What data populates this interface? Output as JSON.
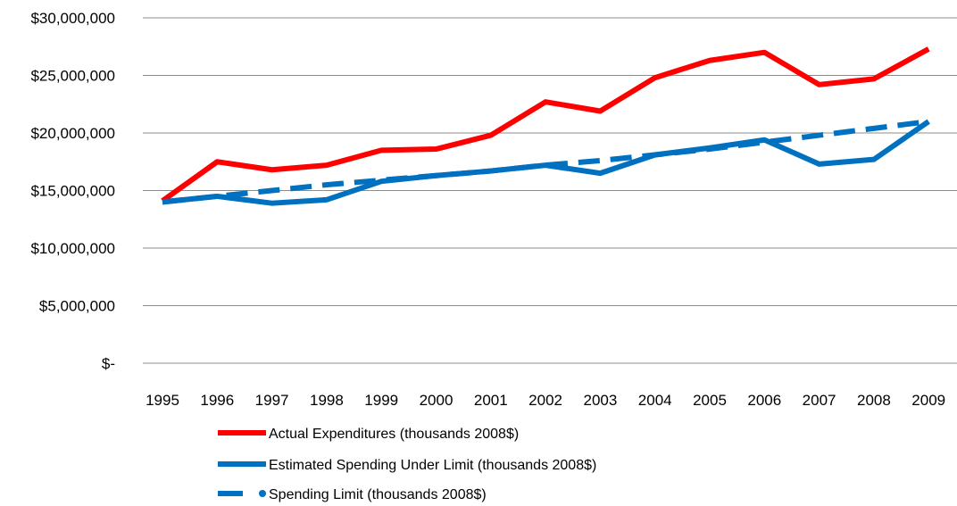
{
  "chart_data": {
    "type": "line",
    "title": "",
    "xlabel": "",
    "ylabel": "",
    "x": [
      "1995",
      "1996",
      "1997",
      "1998",
      "1999",
      "2000",
      "2001",
      "2002",
      "2003",
      "2004",
      "2005",
      "2006",
      "2007",
      "2008",
      "2009"
    ],
    "y_ticks": [
      {
        "value": 0,
        "label": "$-"
      },
      {
        "value": 5000000,
        "label": "$5,000,000"
      },
      {
        "value": 10000000,
        "label": "$10,000,000"
      },
      {
        "value": 15000000,
        "label": "$15,000,000"
      },
      {
        "value": 20000000,
        "label": "$20,000,000"
      },
      {
        "value": 25000000,
        "label": "$25,000,000"
      },
      {
        "value": 30000000,
        "label": "$30,000,000"
      }
    ],
    "ylim": [
      0,
      30000000
    ],
    "grid": true,
    "legend_position": "bottom",
    "series": [
      {
        "name": "Actual Expenditures (thousands  2008$)",
        "color": "#ff0000",
        "style": "solid",
        "values": [
          14100000,
          17500000,
          16800000,
          17200000,
          18500000,
          18600000,
          19800000,
          22700000,
          21900000,
          24800000,
          26300000,
          27000000,
          24200000,
          24700000,
          27300000
        ]
      },
      {
        "name": "Estimated Spending Under Limit (thousands 2008$)",
        "color": "#0070c0",
        "style": "solid",
        "values": [
          14000000,
          14500000,
          13900000,
          14200000,
          15800000,
          16300000,
          16700000,
          17200000,
          16500000,
          18100000,
          18700000,
          19400000,
          17300000,
          17700000,
          21000000
        ]
      },
      {
        "name": "Spending Limit (thousands 2008$)",
        "color": "#0070c0",
        "style": "dashed",
        "values": [
          14000000,
          14500000,
          15000000,
          15500000,
          15900000,
          16300000,
          16700000,
          17200000,
          17600000,
          18100000,
          18600000,
          19200000,
          19800000,
          20400000,
          21000000
        ]
      }
    ]
  }
}
